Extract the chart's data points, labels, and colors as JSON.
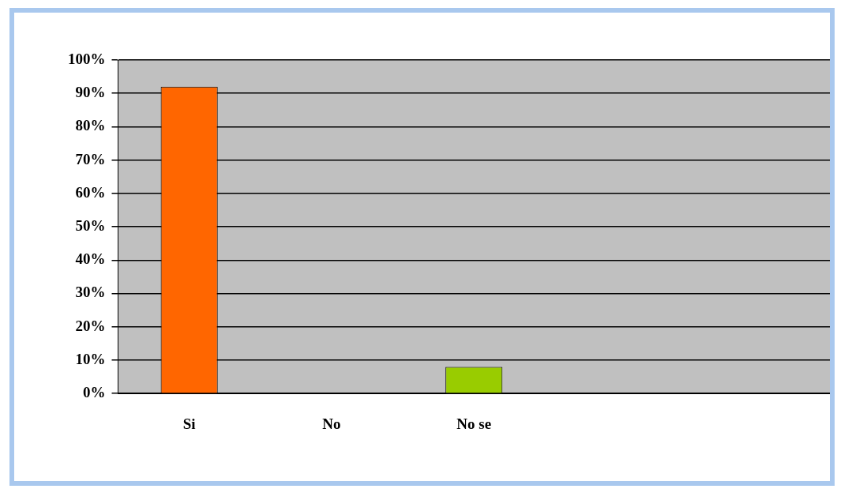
{
  "chart_data": {
    "type": "bar",
    "categories": [
      "Si",
      "No",
      "No se",
      null,
      null
    ],
    "values": [
      92,
      0,
      8,
      null,
      null
    ],
    "colors": [
      "#ff6600",
      "#0000cc",
      "#99cc00",
      "#999999",
      "#999999"
    ],
    "ylim": [
      0,
      100
    ],
    "yticks": [
      {
        "value": 0,
        "label": "0%"
      },
      {
        "value": 10,
        "label": "10%"
      },
      {
        "value": 20,
        "label": "20%"
      },
      {
        "value": 30,
        "label": "30%"
      },
      {
        "value": 40,
        "label": "40%"
      },
      {
        "value": 50,
        "label": "50%"
      },
      {
        "value": 60,
        "label": "60%"
      },
      {
        "value": 70,
        "label": "70%"
      },
      {
        "value": 80,
        "label": "80%"
      },
      {
        "value": 90,
        "label": "90%"
      },
      {
        "value": 100,
        "label": "100%"
      }
    ],
    "grid": "y"
  }
}
